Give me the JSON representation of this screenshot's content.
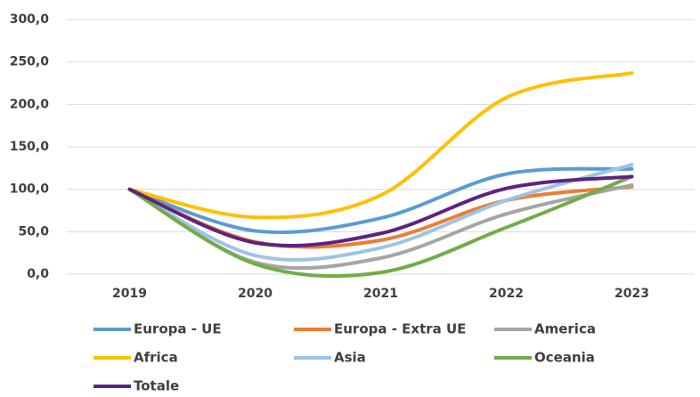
{
  "chart_data": {
    "type": "line",
    "categories": [
      "2019",
      "2020",
      "2021",
      "2022",
      "2023"
    ],
    "series": [
      {
        "name": "Europa - UE",
        "color": "#5b9bd5",
        "values": [
          100,
          51,
          66,
          118,
          124
        ]
      },
      {
        "name": "Europa - Extra UE",
        "color": "#ed7d31",
        "values": [
          100,
          38,
          40,
          87,
          103
        ]
      },
      {
        "name": "America",
        "color": "#a5a5a5",
        "values": [
          100,
          14,
          19,
          71,
          105
        ]
      },
      {
        "name": "Africa",
        "color": "#ffc000",
        "values": [
          100,
          67,
          93,
          208,
          237
        ]
      },
      {
        "name": "Asia",
        "color": "#9dc3e6",
        "values": [
          100,
          22,
          31,
          87,
          129
        ]
      },
      {
        "name": "Oceania",
        "color": "#70ad47",
        "values": [
          100,
          12,
          2,
          55,
          115
        ]
      },
      {
        "name": "Totale",
        "color": "#5c2382",
        "values": [
          100,
          37,
          48,
          101,
          115
        ]
      }
    ],
    "ylim": [
      0,
      300
    ],
    "yticks": [
      {
        "value": 0,
        "label": "0,0"
      },
      {
        "value": 50,
        "label": "50,0"
      },
      {
        "value": 100,
        "label": "100,0"
      },
      {
        "value": 150,
        "label": "150,0"
      },
      {
        "value": 200,
        "label": "200,0"
      },
      {
        "value": 250,
        "label": "250,0"
      },
      {
        "value": 300,
        "label": "300,0"
      }
    ],
    "grid": true,
    "smooth": true,
    "legend": "bottom"
  }
}
